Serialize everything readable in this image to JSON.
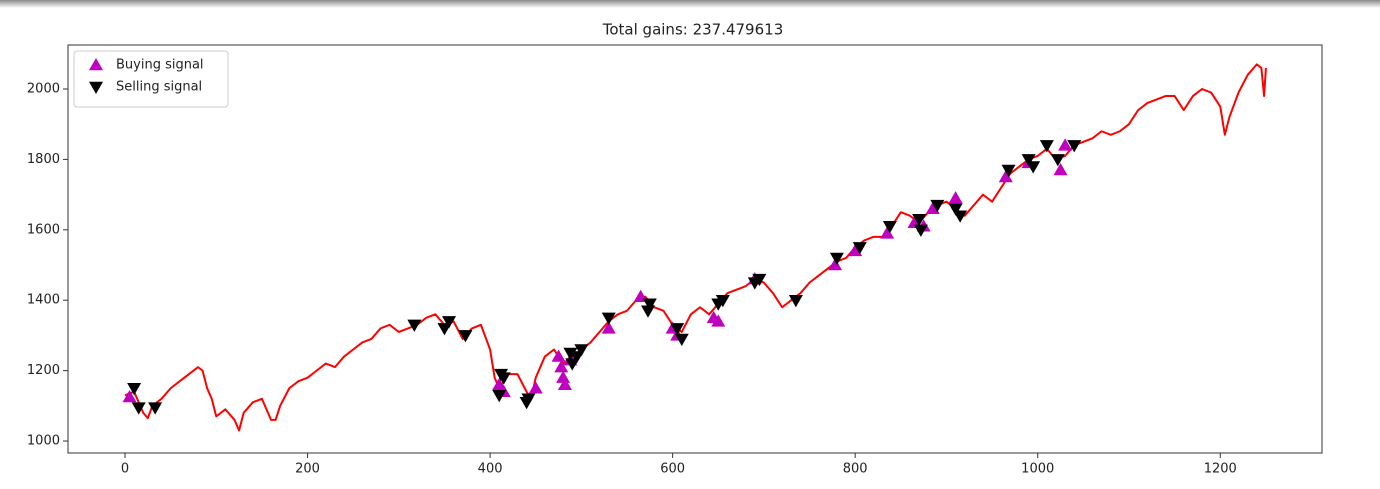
{
  "chart_data": {
    "type": "line",
    "title": "Total gains: 237.479613",
    "xlim": [
      -62.45,
      1311.45
    ],
    "ylim": [
      966,
      2125
    ],
    "xticks": [
      0,
      200,
      400,
      600,
      800,
      1000,
      1200
    ],
    "yticks": [
      1000,
      1200,
      1400,
      1600,
      1800,
      2000
    ],
    "grid": false,
    "legend_position": "upper left",
    "series": [
      {
        "kind": "line",
        "color": "#ff0000",
        "x": [
          0,
          10,
          20,
          25,
          30,
          40,
          50,
          60,
          70,
          80,
          85,
          90,
          95,
          100,
          110,
          120,
          125,
          130,
          140,
          150,
          160,
          165,
          170,
          180,
          190,
          200,
          210,
          220,
          230,
          240,
          250,
          260,
          270,
          280,
          290,
          300,
          310,
          320,
          330,
          340,
          350,
          360,
          370,
          380,
          390,
          400,
          405,
          410,
          420,
          430,
          440,
          445,
          450,
          460,
          470,
          480,
          490,
          500,
          510,
          520,
          530,
          540,
          550,
          560,
          570,
          580,
          590,
          600,
          610,
          620,
          630,
          640,
          650,
          660,
          670,
          680,
          690,
          700,
          710,
          720,
          730,
          740,
          750,
          760,
          770,
          780,
          790,
          800,
          810,
          820,
          830,
          840,
          850,
          860,
          870,
          880,
          890,
          900,
          910,
          920,
          930,
          940,
          950,
          960,
          970,
          980,
          990,
          1000,
          1010,
          1020,
          1030,
          1040,
          1050,
          1060,
          1070,
          1080,
          1090,
          1100,
          1110,
          1120,
          1130,
          1140,
          1150,
          1160,
          1170,
          1180,
          1190,
          1200,
          1205,
          1210,
          1220,
          1230,
          1240,
          1245,
          1248,
          1250
        ],
        "values": [
          1130,
          1140,
          1080,
          1065,
          1100,
          1120,
          1150,
          1170,
          1190,
          1210,
          1200,
          1150,
          1120,
          1070,
          1090,
          1060,
          1030,
          1080,
          1110,
          1120,
          1060,
          1060,
          1100,
          1150,
          1170,
          1180,
          1200,
          1220,
          1210,
          1240,
          1260,
          1280,
          1290,
          1320,
          1330,
          1310,
          1320,
          1330,
          1350,
          1360,
          1330,
          1340,
          1290,
          1320,
          1330,
          1260,
          1180,
          1150,
          1190,
          1190,
          1140,
          1120,
          1180,
          1240,
          1260,
          1220,
          1240,
          1260,
          1280,
          1310,
          1340,
          1360,
          1370,
          1400,
          1410,
          1380,
          1370,
          1330,
          1310,
          1360,
          1380,
          1360,
          1390,
          1420,
          1430,
          1440,
          1460,
          1450,
          1420,
          1380,
          1400,
          1420,
          1450,
          1470,
          1490,
          1510,
          1520,
          1550,
          1570,
          1580,
          1580,
          1610,
          1650,
          1640,
          1620,
          1650,
          1670,
          1680,
          1660,
          1640,
          1670,
          1700,
          1680,
          1720,
          1760,
          1780,
          1800,
          1810,
          1830,
          1800,
          1810,
          1840,
          1850,
          1860,
          1880,
          1870,
          1880,
          1900,
          1940,
          1960,
          1970,
          1980,
          1980,
          1940,
          1980,
          2000,
          1990,
          1950,
          1870,
          1920,
          1990,
          2040,
          2070,
          2060,
          1980,
          2060
        ]
      },
      {
        "kind": "scatter",
        "name": "Buying signal",
        "color": "#bf00bf",
        "marker": "triangle-up",
        "x": [
          5,
          410,
          415,
          450,
          475,
          478,
          480,
          482,
          488,
          530,
          565,
          600,
          605,
          645,
          650,
          690,
          778,
          800,
          835,
          865,
          875,
          885,
          910,
          965,
          990,
          1025,
          1030
        ],
        "values": [
          1125,
          1160,
          1140,
          1150,
          1240,
          1210,
          1180,
          1160,
          1230,
          1320,
          1410,
          1320,
          1300,
          1350,
          1340,
          1460,
          1500,
          1540,
          1590,
          1620,
          1610,
          1660,
          1690,
          1750,
          1790,
          1770,
          1840
        ]
      },
      {
        "kind": "scatter",
        "name": "Selling signal",
        "color": "#000000",
        "marker": "triangle-down",
        "x": [
          10,
          15,
          33,
          317,
          350,
          355,
          373,
          410,
          412,
          415,
          440,
          442,
          488,
          490,
          495,
          500,
          530,
          573,
          575,
          605,
          610,
          650,
          655,
          690,
          695,
          735,
          780,
          805,
          838,
          870,
          872,
          890,
          910,
          915,
          968,
          990,
          995,
          1010,
          1022,
          1040
        ],
        "values": [
          1150,
          1095,
          1095,
          1330,
          1320,
          1340,
          1300,
          1130,
          1190,
          1180,
          1110,
          1120,
          1250,
          1220,
          1240,
          1260,
          1350,
          1370,
          1390,
          1320,
          1290,
          1390,
          1400,
          1450,
          1460,
          1400,
          1520,
          1550,
          1610,
          1630,
          1600,
          1670,
          1660,
          1640,
          1770,
          1800,
          1780,
          1840,
          1800,
          1840
        ]
      }
    ]
  }
}
